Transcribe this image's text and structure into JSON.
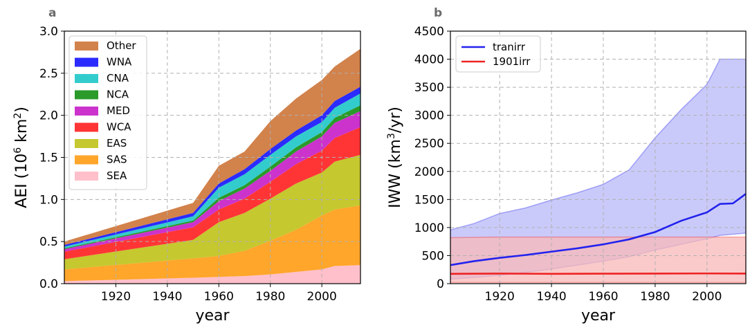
{
  "chart_data": [
    {
      "panel": "a",
      "type": "area",
      "stacked": true,
      "xlabel": "year",
      "ylabel": "AEI (10⁶ km²)",
      "xlim": [
        1900,
        2015
      ],
      "ylim": [
        0.0,
        3.0
      ],
      "x_ticks": [
        1920,
        1940,
        1960,
        1980,
        2000
      ],
      "y_ticks": [
        "0.0",
        "0.5",
        "1.0",
        "1.5",
        "2.0",
        "2.5",
        "3.0"
      ],
      "x": [
        1900,
        1950,
        1960,
        1970,
        1980,
        1990,
        2000,
        2005,
        2015
      ],
      "series": [
        {
          "name": "SEA",
          "color": "#ffc0cb",
          "values": [
            0.03,
            0.07,
            0.08,
            0.09,
            0.11,
            0.14,
            0.17,
            0.21,
            0.22
          ]
        },
        {
          "name": "SAS",
          "color": "#ffa62b",
          "values": [
            0.14,
            0.23,
            0.25,
            0.3,
            0.4,
            0.5,
            0.64,
            0.67,
            0.71
          ]
        },
        {
          "name": "EAS",
          "color": "#c5c82f",
          "values": [
            0.12,
            0.22,
            0.4,
            0.45,
            0.5,
            0.55,
            0.51,
            0.57,
            0.6
          ]
        },
        {
          "name": "WCA",
          "color": "#ff3535",
          "values": [
            0.09,
            0.15,
            0.15,
            0.17,
            0.2,
            0.23,
            0.26,
            0.28,
            0.33
          ]
        },
        {
          "name": "MED",
          "color": "#cc33cc",
          "values": [
            0.03,
            0.06,
            0.1,
            0.12,
            0.13,
            0.15,
            0.17,
            0.18,
            0.19
          ]
        },
        {
          "name": "NCA",
          "color": "#2a9a2a",
          "values": [
            0.01,
            0.02,
            0.04,
            0.04,
            0.05,
            0.05,
            0.05,
            0.06,
            0.07
          ]
        },
        {
          "name": "CNA",
          "color": "#33cccc",
          "values": [
            0.02,
            0.05,
            0.12,
            0.13,
            0.14,
            0.13,
            0.12,
            0.12,
            0.14
          ]
        },
        {
          "name": "WNA",
          "color": "#2b2bff",
          "values": [
            0.02,
            0.04,
            0.05,
            0.06,
            0.07,
            0.07,
            0.08,
            0.08,
            0.08
          ]
        },
        {
          "name": "Other",
          "color": "#d2824b",
          "values": [
            0.04,
            0.12,
            0.21,
            0.21,
            0.33,
            0.38,
            0.42,
            0.41,
            0.45
          ]
        }
      ],
      "legend": [
        "Other",
        "WNA",
        "CNA",
        "NCA",
        "MED",
        "WCA",
        "EAS",
        "SAS",
        "SEA"
      ],
      "legend_position": "top-left",
      "grid": true
    },
    {
      "panel": "b",
      "type": "line",
      "xlabel": "year",
      "ylabel": "IWW (km³/yr)",
      "xlim": [
        1901,
        2015
      ],
      "ylim": [
        0,
        4500
      ],
      "x_ticks": [
        1920,
        1940,
        1960,
        1980,
        2000
      ],
      "y_ticks": [
        "0",
        "500",
        "1000",
        "1500",
        "2000",
        "2500",
        "3000",
        "3500",
        "4000",
        "4500"
      ],
      "series": [
        {
          "name": "tranirr",
          "color": "#2222ee",
          "fill": "#b8b8f8",
          "x": [
            1901,
            1910,
            1920,
            1930,
            1940,
            1950,
            1960,
            1970,
            1980,
            1990,
            2000,
            2005,
            2010,
            2015
          ],
          "values": [
            330,
            400,
            460,
            510,
            570,
            630,
            700,
            790,
            920,
            1120,
            1270,
            1420,
            1430,
            1600
          ],
          "band_lower": [
            80,
            110,
            150,
            200,
            260,
            330,
            400,
            480,
            600,
            700,
            800,
            860,
            880,
            900
          ],
          "band_upper": [
            960,
            1070,
            1250,
            1350,
            1490,
            1620,
            1770,
            2030,
            2600,
            3100,
            3550,
            4000,
            4000,
            4000
          ]
        },
        {
          "name": "1901irr",
          "color": "#ee2222",
          "fill": "#f8b8b8",
          "x": [
            1901,
            1920,
            1940,
            1960,
            1980,
            2000,
            2015
          ],
          "values": [
            175,
            180,
            175,
            178,
            180,
            182,
            180
          ],
          "band_lower": [
            20,
            20,
            20,
            20,
            20,
            20,
            20
          ],
          "band_upper": [
            820,
            830,
            830,
            830,
            830,
            830,
            830
          ]
        }
      ],
      "legend": [
        "tranirr",
        "1901irr"
      ],
      "legend_position": "top-left",
      "grid": true
    }
  ]
}
